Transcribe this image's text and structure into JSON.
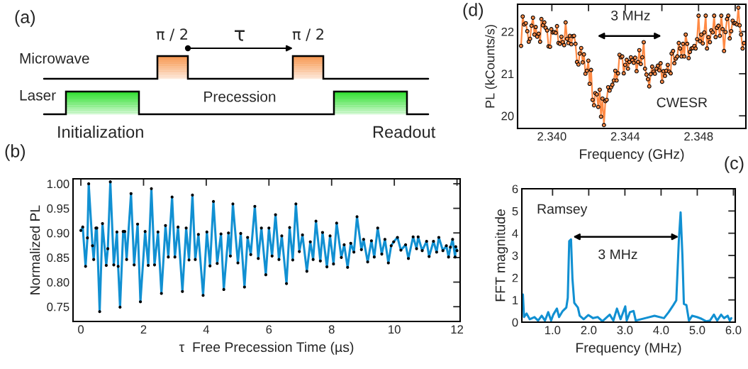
{
  "chart_data": [
    {
      "type": "other",
      "title": "(a)",
      "annotations": [
        "Microwave",
        "Laser",
        "π / 2",
        "τ",
        "π / 2",
        "Precession",
        "Initialization",
        "Readout"
      ]
    },
    {
      "type": "line",
      "title": "(d)",
      "xlabel": "Frequency (GHz)",
      "ylabel": "PL (kCounts/s)",
      "xlim": [
        2.33813,
        2.35058
      ],
      "ylim": [
        19.7,
        22.65
      ],
      "xticks": [
        {
          "value": 2.34,
          "label": "2.340"
        },
        {
          "value": 2.342,
          "label": null
        },
        {
          "value": 2.344,
          "label": "2.344"
        },
        {
          "value": 2.346,
          "label": null
        },
        {
          "value": 2.348,
          "label": "2.348"
        },
        {
          "value": 2.35,
          "label": null
        }
      ],
      "yticks": [
        20,
        21,
        22
      ],
      "marker": "circle",
      "line_style": "solid",
      "grid": false,
      "legend": false,
      "annotations": [
        "3 MHz",
        "CWESR"
      ],
      "series": [
        {
          "color": "#ff8a45",
          "x": [
            2.33832,
            2.33841,
            2.33849,
            2.33858,
            2.33866,
            2.33874,
            2.33881,
            2.33889,
            2.33897,
            2.33905,
            2.33912,
            2.3392,
            2.33928,
            2.33936,
            2.33943,
            2.33951,
            2.33959,
            2.33966,
            2.33974,
            2.33982,
            2.3399,
            2.33997,
            2.34005,
            2.34013,
            2.34021,
            2.34028,
            2.34036,
            2.34044,
            2.34052,
            2.34059,
            2.34067,
            2.34075,
            2.34083,
            2.3409,
            2.34098,
            2.34106,
            2.34114,
            2.34121,
            2.34129,
            2.34137,
            2.34145,
            2.34152,
            2.3416,
            2.34168,
            2.34175,
            2.34183,
            2.34191,
            2.34199,
            2.34206,
            2.34214,
            2.34222,
            2.3423,
            2.34237,
            2.34245,
            2.34253,
            2.34261,
            2.34268,
            2.34276,
            2.34284,
            2.34292,
            2.34299,
            2.34307,
            2.34315,
            2.34323,
            2.3433,
            2.34338,
            2.34346,
            2.34353,
            2.34361,
            2.34369,
            2.34377,
            2.34384,
            2.34392,
            2.344,
            2.34408,
            2.34415,
            2.34423,
            2.34431,
            2.34439,
            2.34446,
            2.34454,
            2.34462,
            2.3447,
            2.34477,
            2.34485,
            2.34493,
            2.34501,
            2.34508,
            2.34516,
            2.34524,
            2.34531,
            2.34539,
            2.34547,
            2.34555,
            2.34562,
            2.3457,
            2.34578,
            2.34586,
            2.34593,
            2.34601,
            2.34609,
            2.34617,
            2.34624,
            2.34632,
            2.3464,
            2.34648,
            2.34653,
            2.34661,
            2.34668,
            2.34676,
            2.34684,
            2.34692,
            2.34699,
            2.34707,
            2.34715,
            2.34722,
            2.3473,
            2.34738,
            2.34746,
            2.34753,
            2.34761,
            2.34769,
            2.34777,
            2.34784,
            2.34792,
            2.348,
            2.34808,
            2.34815,
            2.34823,
            2.34831,
            2.34839,
            2.34846,
            2.34854,
            2.34862,
            2.34869,
            2.34877,
            2.34885,
            2.34893,
            2.349,
            2.34908,
            2.34916,
            2.34924,
            2.34931,
            2.34939,
            2.34947,
            2.34955,
            2.34962,
            2.3497,
            2.34978,
            2.34986,
            2.34993,
            2.35001,
            2.35009,
            2.35017,
            2.35024,
            2.35032,
            2.3504,
            2.35048
          ],
          "values": [
            21.66,
            22.36,
            22.17,
            22.2,
            22.01,
            21.76,
            21.83,
            22.14,
            22.33,
            21.93,
            22.11,
            21.88,
            21.95,
            21.76,
            22.3,
            22.15,
            22.22,
            22.09,
            22.03,
            21.65,
            21.64,
            22.06,
            21.98,
            21.99,
            21.97,
            22.13,
            21.73,
            21.71,
            21.88,
            21.75,
            21.68,
            22.22,
            21.83,
            21.73,
            21.9,
            21.7,
            21.89,
            21.9,
            21.71,
            21.28,
            21.22,
            21.48,
            21.61,
            21.27,
            21.46,
            21.0,
            21.07,
            21.31,
            20.76,
            21.09,
            20.38,
            20.25,
            20.54,
            20.51,
            20.21,
            20.62,
            19.98,
            20.41,
            19.78,
            20.35,
            20.38,
            20.68,
            20.6,
            20.68,
            20.74,
            20.84,
            21.07,
            20.84,
            21.01,
            21.45,
            21.39,
            21.41,
            21.01,
            21.21,
            21.33,
            21.12,
            21.28,
            21.39,
            21.32,
            21.26,
            21.38,
            21.06,
            21.28,
            21.56,
            21.23,
            21.39,
            21.75,
            21.12,
            20.98,
            20.87,
            20.7,
            20.99,
            21.17,
            21.05,
            21.0,
            21.12,
            21.19,
            21.08,
            21.25,
            20.81,
            21.06,
            20.95,
            21.07,
            21.21,
            21.05,
            21.01,
            21.48,
            21.54,
            21.25,
            21.36,
            21.41,
            21.73,
            21.6,
            21.41,
            21.71,
            21.41,
            21.93,
            21.71,
            21.37,
            21.52,
            21.6,
            21.61,
            21.66,
            21.6,
            21.82,
            22.38,
            21.77,
            21.93,
            21.72,
            21.98,
            22.38,
            21.6,
            21.87,
            21.75,
            22.03,
            21.98,
            22.38,
            21.87,
            22.09,
            22.14,
            21.9,
            22.38,
            22.06,
            21.54,
            21.99,
            22.3,
            22.38,
            21.84,
            22.01,
            22.26,
            22.2,
            22.2,
            22.17,
            22.57,
            22.15,
            21.93,
            21.6,
            21.73
          ]
        }
      ]
    },
    {
      "type": "line",
      "title": "(b)",
      "xlabel": "τ  Free Precession Time (µs)",
      "ylabel": "Normalized PL",
      "xlim": [
        -0.25,
        12.1
      ],
      "ylim": [
        0.72,
        1.01
      ],
      "xticks": [
        0,
        2,
        4,
        6,
        8,
        10,
        12
      ],
      "yticks": [
        {
          "value": 0.75,
          "label": "0.75"
        },
        {
          "value": 0.8,
          "label": "0.80"
        },
        {
          "value": 0.85,
          "label": "0.85"
        },
        {
          "value": 0.9,
          "label": "0.90"
        },
        {
          "value": 0.95,
          "label": "0.95"
        },
        {
          "value": 1.0,
          "label": "1.00"
        }
      ],
      "marker": "circle",
      "line_style": "solid",
      "grid": false,
      "legend": false,
      "series": [
        {
          "color": "#1190d2",
          "x": [
            0,
            0.06,
            0.15,
            0.21,
            0.25,
            0.37,
            0.41,
            0.48,
            0.51,
            0.6,
            0.69,
            0.81,
            0.86,
            0.94,
            1.05,
            1.15,
            1.19,
            1.25,
            1.35,
            1.4,
            1.46,
            1.6,
            1.7,
            1.81,
            1.9,
            2.05,
            2.15,
            2.25,
            2.35,
            2.46,
            2.57,
            2.7,
            2.79,
            2.91,
            3.0,
            3.1,
            3.24,
            3.36,
            3.45,
            3.56,
            3.65,
            3.75,
            3.9,
            4.02,
            4.12,
            4.23,
            4.35,
            4.47,
            4.56,
            4.71,
            4.77,
            4.85,
            5.01,
            5.1,
            5.22,
            5.32,
            5.42,
            5.55,
            5.66,
            5.76,
            5.9,
            6.0,
            6.1,
            6.21,
            6.32,
            6.41,
            6.56,
            6.66,
            6.76,
            6.86,
            6.97,
            7.07,
            7.21,
            7.32,
            7.41,
            7.5,
            7.64,
            7.71,
            7.85,
            7.95,
            8.06,
            8.16,
            8.31,
            8.4,
            8.51,
            8.61,
            8.71,
            8.81,
            8.95,
            9.02,
            9.15,
            9.27,
            9.36,
            9.47,
            9.6,
            9.7,
            9.81,
            9.9,
            9.98,
            10.1,
            10.21,
            10.36,
            10.45,
            10.6,
            10.71,
            10.76,
            10.89,
            11.03,
            11.11,
            11.25,
            11.35,
            11.42,
            11.55,
            11.66,
            11.73,
            11.79,
            11.86,
            11.94,
            11.96,
            12.0
          ],
          "values": [
            0.905,
            0.912,
            0.832,
            0.89,
            1.0,
            0.874,
            0.846,
            0.91,
            0.91,
            0.74,
            0.919,
            0.834,
            0.868,
            1.004,
            0.835,
            0.902,
            0.832,
            0.749,
            0.903,
            0.903,
            0.846,
            0.98,
            0.835,
            0.918,
            0.76,
            0.903,
            0.834,
            0.99,
            0.835,
            0.902,
            0.777,
            0.915,
            0.851,
            0.973,
            0.851,
            0.912,
            0.781,
            0.91,
            0.845,
            0.977,
            0.846,
            0.897,
            0.773,
            0.902,
            0.833,
            0.964,
            0.838,
            0.898,
            0.785,
            0.9,
            0.853,
            0.959,
            0.839,
            0.899,
            0.79,
            0.891,
            0.856,
            0.954,
            0.848,
            0.91,
            0.815,
            0.91,
            0.853,
            0.937,
            0.846,
            0.894,
            0.797,
            0.911,
            0.845,
            0.959,
            0.862,
            0.896,
            0.822,
            0.882,
            0.846,
            0.924,
            0.843,
            0.901,
            0.831,
            0.894,
            0.837,
            0.92,
            0.85,
            0.876,
            0.83,
            0.879,
            0.861,
            0.933,
            0.866,
            0.887,
            0.841,
            0.884,
            0.851,
            0.91,
            0.857,
            0.887,
            0.839,
            0.874,
            0.882,
            0.891,
            0.865,
            0.876,
            0.848,
            0.892,
            0.868,
            0.892,
            0.864,
            0.883,
            0.852,
            0.883,
            0.861,
            0.891,
            0.864,
            0.874,
            0.851,
            0.871,
            0.887,
            0.851,
            0.872,
            0.864
          ]
        }
      ]
    },
    {
      "type": "line",
      "title": "(c)",
      "xlabel": "Frequency (MHz)",
      "ylabel": "FFT magnitude",
      "xlim": [
        0.15,
        6.05
      ],
      "ylim": [
        0,
        6
      ],
      "xticks": [
        {
          "value": 1,
          "label": "1.0"
        },
        {
          "value": 2,
          "label": "2.0"
        },
        {
          "value": 3,
          "label": "3.0"
        },
        {
          "value": 4,
          "label": "4.0"
        },
        {
          "value": 5,
          "label": "5.0"
        },
        {
          "value": 6,
          "label": "6.0"
        }
      ],
      "yticks": [
        0,
        1,
        2,
        3,
        4,
        5,
        6
      ],
      "line_style": "solid",
      "grid": false,
      "legend": false,
      "annotations": [
        "Ramsey",
        "3 MHz"
      ],
      "series": [
        {
          "color": "#1190d2",
          "x": [
            0.18,
            0.21,
            0.28,
            0.37,
            0.5,
            0.6,
            0.7,
            0.79,
            0.88,
            0.96,
            1.02,
            1.12,
            1.18,
            1.28,
            1.38,
            1.42,
            1.46,
            1.51,
            1.55,
            1.6,
            1.7,
            1.75,
            1.86,
            1.99,
            2.12,
            2.25,
            2.38,
            2.58,
            2.68,
            2.78,
            2.88,
            3.01,
            3.05,
            3.14,
            3.24,
            3.3,
            3.56,
            3.82,
            4.08,
            4.21,
            4.34,
            4.42,
            4.49,
            4.54,
            4.59,
            4.63,
            4.7,
            4.77,
            4.86,
            4.99,
            5.12,
            5.25,
            5.35,
            5.46,
            5.55,
            5.66,
            5.74,
            5.84,
            5.9,
            5.94
          ],
          "values": [
            1.24,
            0.23,
            0.39,
            0.13,
            0.23,
            0.07,
            0.29,
            0.07,
            0.45,
            0.07,
            0.34,
            0.61,
            0.23,
            0.5,
            0.66,
            1.09,
            3.64,
            3.72,
            1.94,
            0.87,
            0.66,
            0.29,
            0.13,
            0.32,
            0.18,
            0.23,
            0.04,
            0.34,
            0.07,
            0.61,
            0.13,
            0.71,
            0.07,
            0.45,
            0.5,
            0.07,
            0.18,
            0.29,
            0.18,
            0.45,
            0.77,
            0.98,
            3.64,
            4.94,
            2.98,
            0.82,
            0.77,
            0.07,
            0.29,
            0.23,
            0.15,
            0.04,
            0.07,
            0.34,
            0.07,
            0.34,
            0.18,
            0.29,
            0.07,
            0.18
          ]
        }
      ]
    }
  ]
}
